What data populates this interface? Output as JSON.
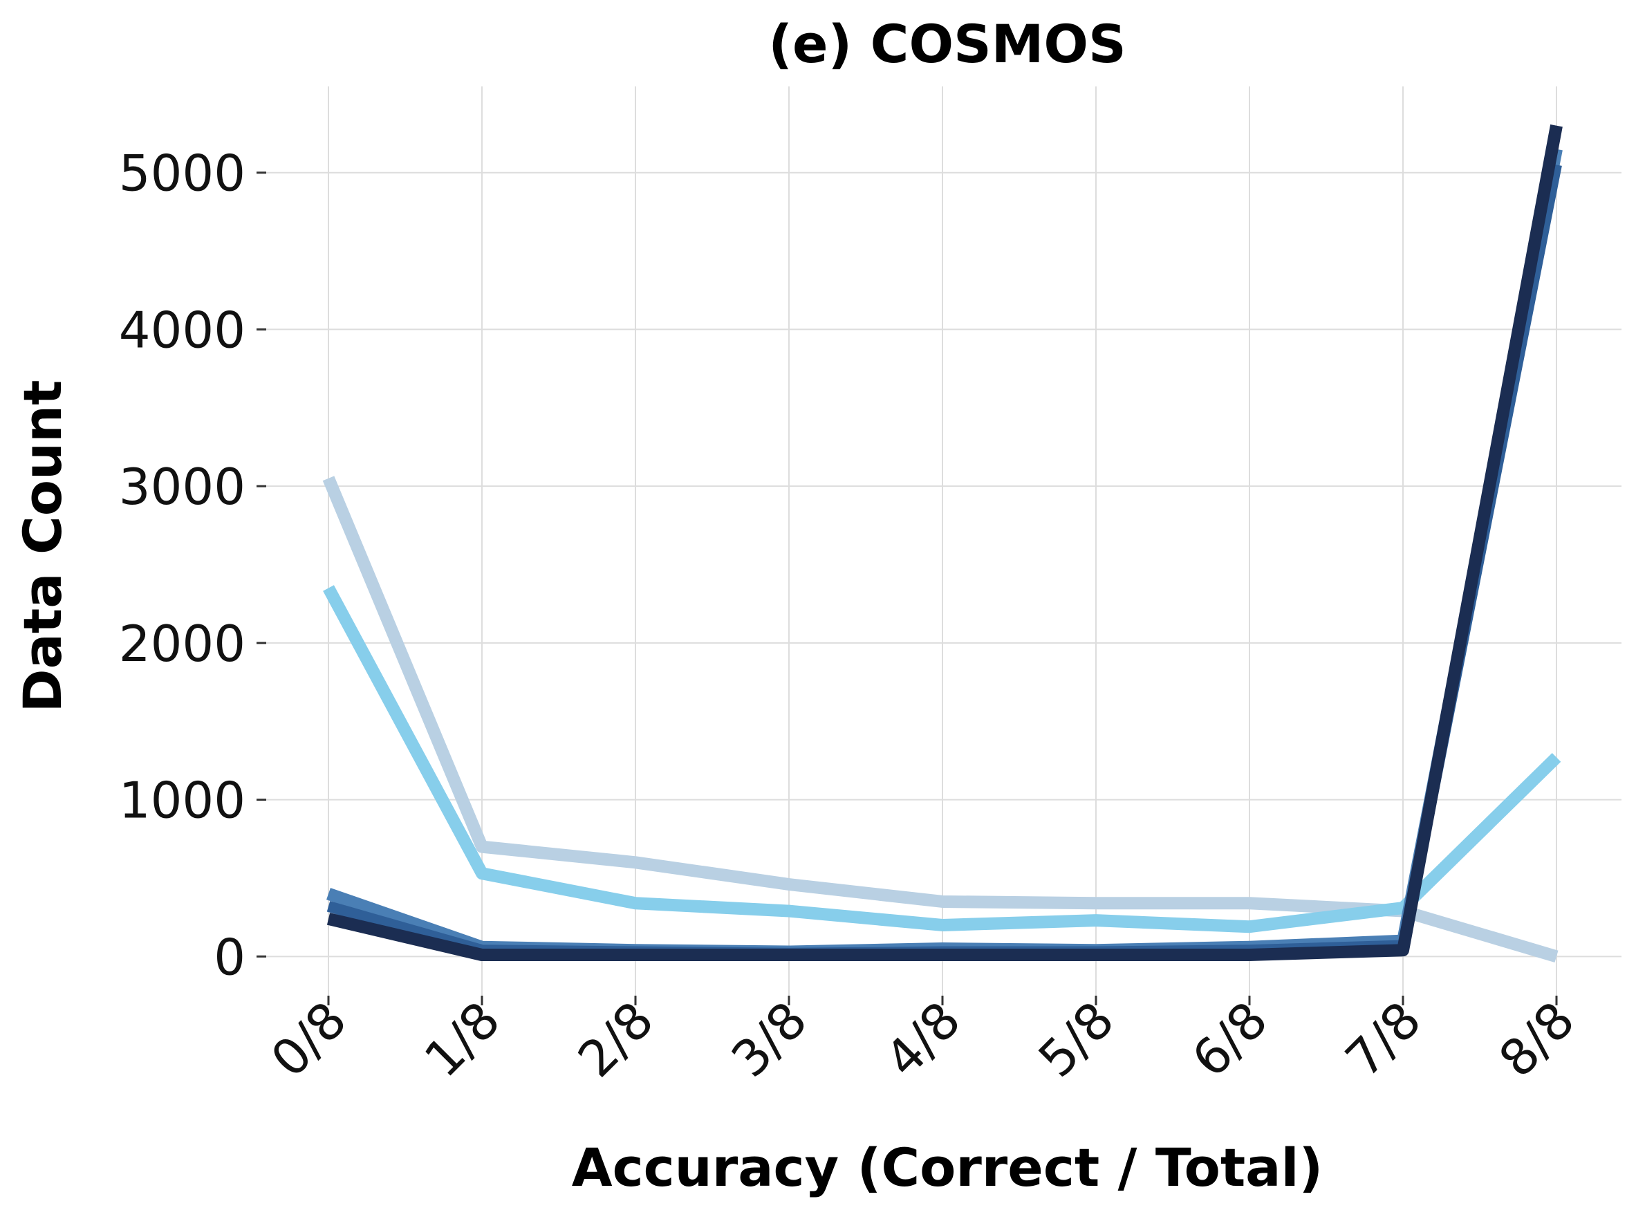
{
  "chart_data": {
    "type": "line",
    "title": "(e) COSMOS",
    "xlabel": "Accuracy (Correct / Total)",
    "ylabel": "Data Count",
    "categories": [
      "0/8",
      "1/8",
      "2/8",
      "3/8",
      "4/8",
      "5/8",
      "6/8",
      "7/8",
      "8/8"
    ],
    "ylim": [
      -250,
      5550
    ],
    "yticks": [
      0,
      1000,
      2000,
      3000,
      4000,
      5000
    ],
    "grid": true,
    "legend": "none",
    "series": [
      {
        "color": "#b9d0e3",
        "values": [
          3050,
          700,
          600,
          460,
          350,
          340,
          340,
          290,
          0
        ]
      },
      {
        "color": "#87ceeb",
        "values": [
          2350,
          530,
          340,
          290,
          200,
          230,
          190,
          310,
          1270
        ]
      },
      {
        "color": "#4a7fb5",
        "values": [
          400,
          60,
          40,
          30,
          50,
          40,
          60,
          100,
          5150
        ]
      },
      {
        "color": "#2f5f98",
        "values": [
          320,
          40,
          30,
          20,
          30,
          30,
          40,
          70,
          5050
        ]
      },
      {
        "color": "#1b2d52",
        "values": [
          240,
          10,
          10,
          10,
          10,
          10,
          10,
          40,
          5300
        ]
      }
    ]
  }
}
